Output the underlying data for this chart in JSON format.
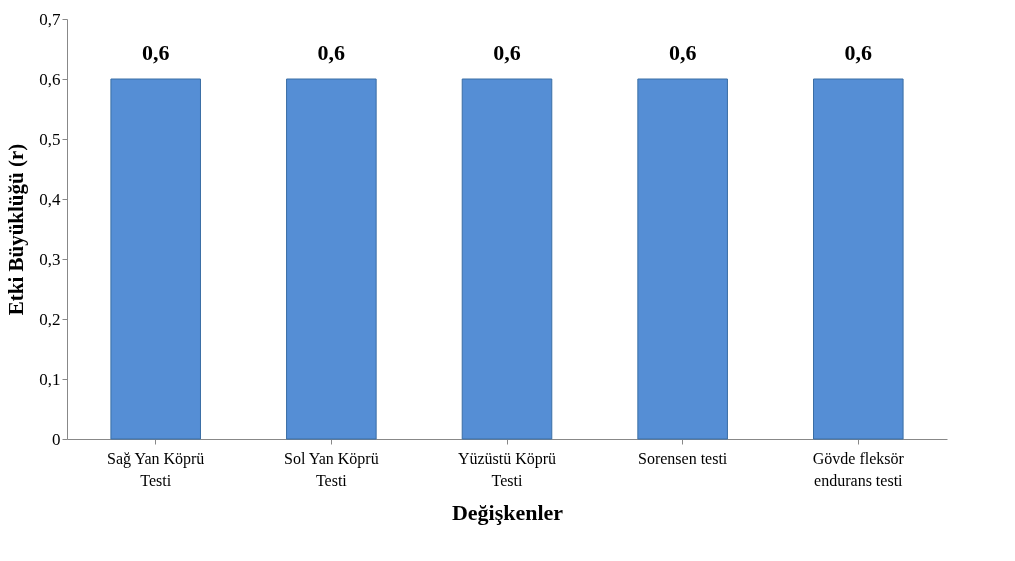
{
  "chart_data": {
    "type": "bar",
    "categories": [
      "Sağ Yan Köprü Testi",
      "Sol Yan Köprü Testi",
      "Yüzüstü Köprü Testi",
      "Sorensen testi",
      "Gövde fleksör endurans testi"
    ],
    "values": [
      0.6,
      0.6,
      0.6,
      0.6,
      0.6
    ],
    "value_labels": [
      "0,6",
      "0,6",
      "0,6",
      "0,6",
      "0,6"
    ],
    "color": "#558ed5",
    "xlabel": "Değişkenler",
    "ylabel": "Etki Büyüklüğü (r)",
    "ylim": [
      0,
      0.7
    ],
    "yticks": [
      0,
      {
        "value": 0.1,
        "label": "0,1"
      },
      {
        "value": 0.2,
        "label": "0,2"
      },
      {
        "value": 0.3,
        "label": "0,3"
      },
      {
        "value": 0.4,
        "label": "0,4"
      },
      {
        "value": 0.5,
        "label": "0,5"
      },
      {
        "value": 0.6,
        "label": "0,6"
      },
      {
        "value": 0.7,
        "label": "0,7"
      }
    ],
    "grid": false
  }
}
